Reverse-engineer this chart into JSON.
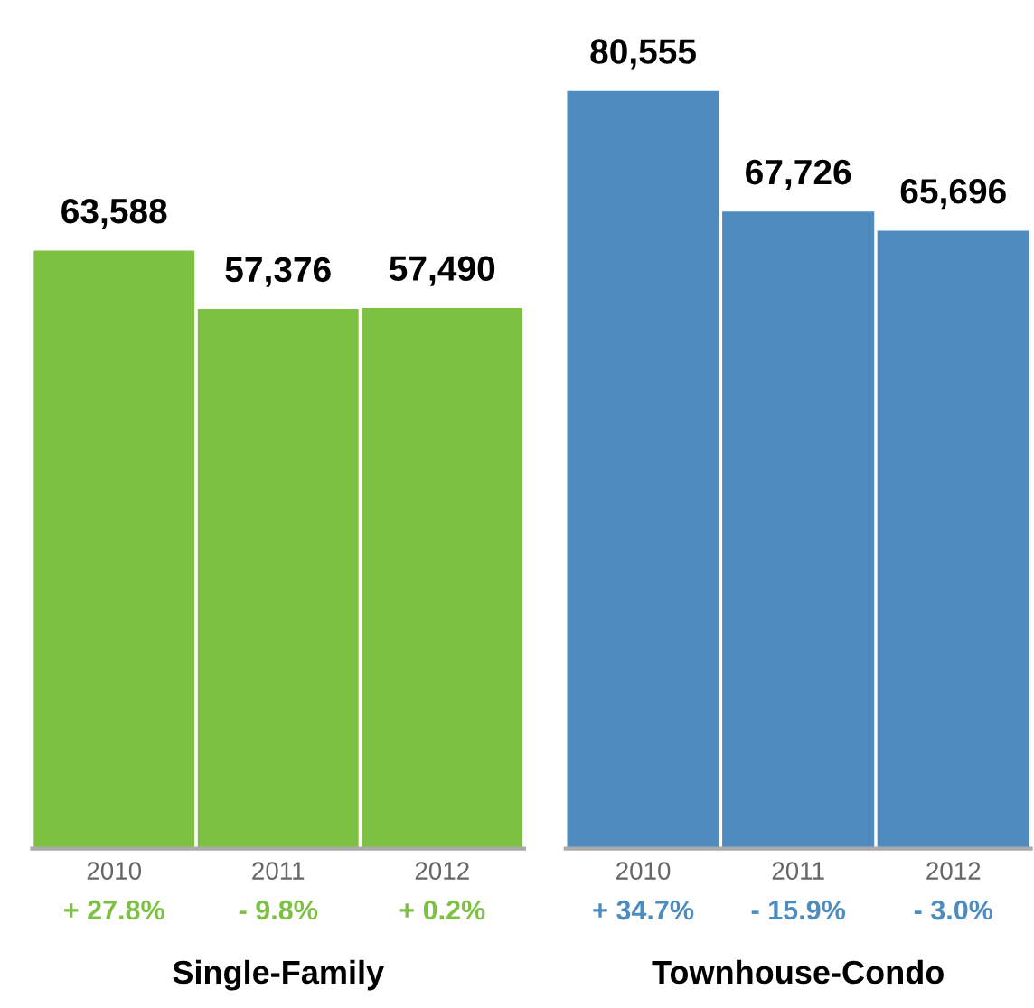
{
  "chart_data": [
    {
      "type": "bar",
      "xlabel": "Single-Family",
      "categories": [
        "2010",
        "2011",
        "2012"
      ],
      "values": [
        63588,
        57376,
        57490
      ],
      "value_labels": [
        "63,588",
        "57,376",
        "57,490"
      ],
      "color": "#7dc142",
      "tick_labels": "x",
      "grid": false,
      "legend": false,
      "annotations": [
        "+ 27.8%",
        "- 9.8%",
        "+ 0.2%"
      ]
    },
    {
      "type": "bar",
      "xlabel": "Townhouse-Condo",
      "categories": [
        "2010",
        "2011",
        "2012"
      ],
      "values": [
        80555,
        67726,
        65696
      ],
      "value_labels": [
        "80,555",
        "67,726",
        "65,696"
      ],
      "color": "#4e8bbf",
      "tick_labels": "x",
      "grid": false,
      "legend": false,
      "annotations": [
        "+ 34.7%",
        "- 15.9%",
        "- 3.0%"
      ]
    }
  ]
}
